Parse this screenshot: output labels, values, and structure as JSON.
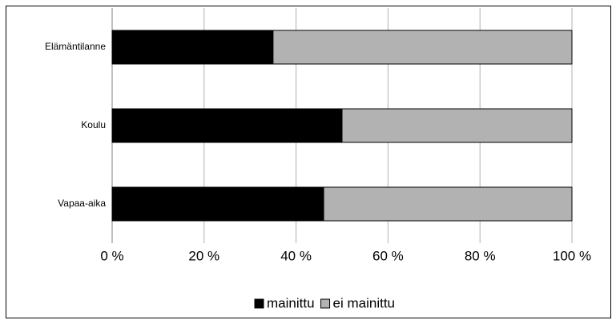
{
  "chart_data": {
    "type": "bar",
    "orientation": "horizontal",
    "stacked": true,
    "categories": [
      "Elämäntilanne",
      "Koulu",
      "Vapaa-aika"
    ],
    "series": [
      {
        "name": "mainittu",
        "color": "#000000",
        "values": [
          35,
          50,
          46
        ]
      },
      {
        "name": "ei mainittu",
        "color": "#b2b2b2",
        "values": [
          65,
          50,
          54
        ]
      }
    ],
    "xlim": [
      0,
      100
    ],
    "xticks": [
      {
        "value": 0,
        "label": "0 %"
      },
      {
        "value": 20,
        "label": "20 %"
      },
      {
        "value": 40,
        "label": "40 %"
      },
      {
        "value": 60,
        "label": "60 %"
      },
      {
        "value": 80,
        "label": "80 %"
      },
      {
        "value": 100,
        "label": "100 %"
      }
    ],
    "grid": true,
    "legend": "bottom"
  }
}
